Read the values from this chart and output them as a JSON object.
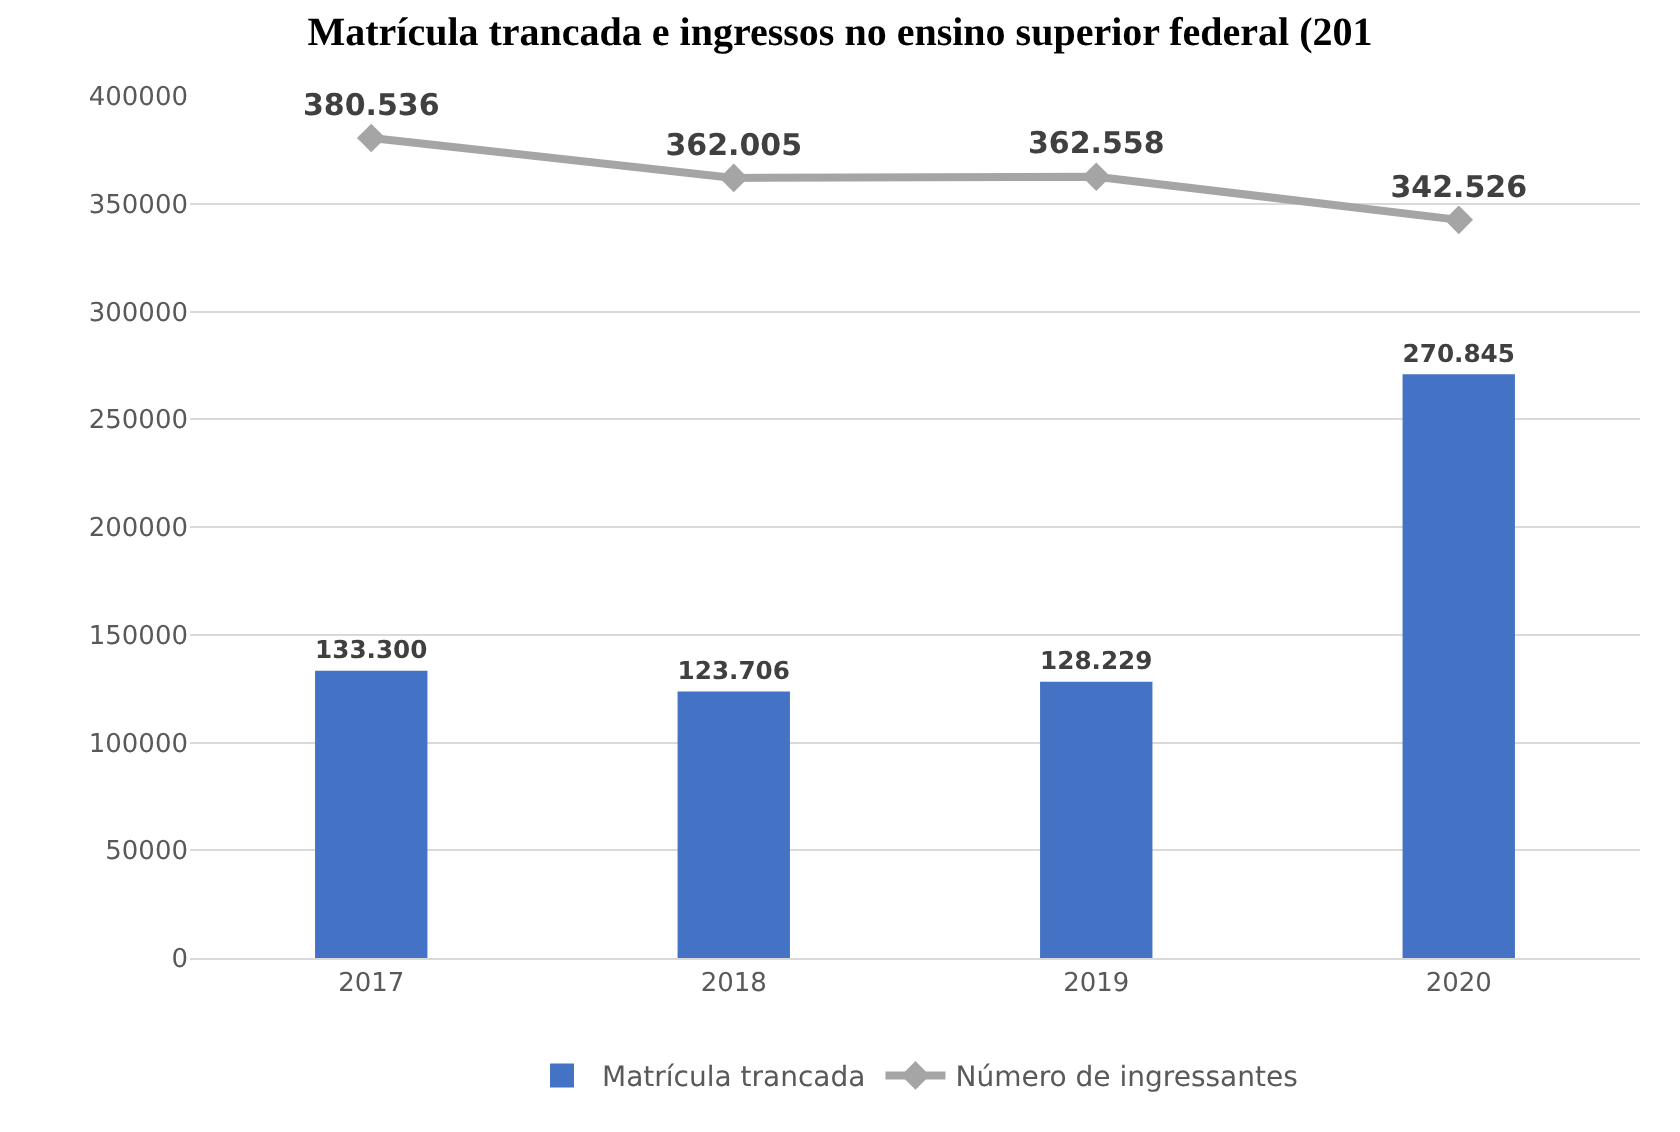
{
  "chart_data": {
    "type": "bar",
    "title": "Matrícula trancada e ingressos no ensino superior federal (201",
    "categories": [
      "2017",
      "2018",
      "2019",
      "2020"
    ],
    "series": [
      {
        "name": "Matrícula trancada",
        "color": "#4472c4",
        "values": [
          133300,
          123706,
          128229,
          270845
        ],
        "value_labels": [
          "133.300",
          "123.706",
          "128.229",
          "270.845"
        ]
      },
      {
        "name": "Número de ingressantes",
        "type": "line",
        "color": "#a5a5a5",
        "marker": "diamond",
        "values": [
          380536,
          362005,
          362558,
          342526
        ],
        "value_labels": [
          "380.536",
          "362.005",
          "362.558",
          "342.526"
        ]
      }
    ],
    "ylim": [
      0,
      400000
    ],
    "yticks": [
      0,
      50000,
      100000,
      150000,
      200000,
      250000,
      300000,
      350000,
      400000
    ],
    "grid": "y",
    "legend": "bottom"
  }
}
